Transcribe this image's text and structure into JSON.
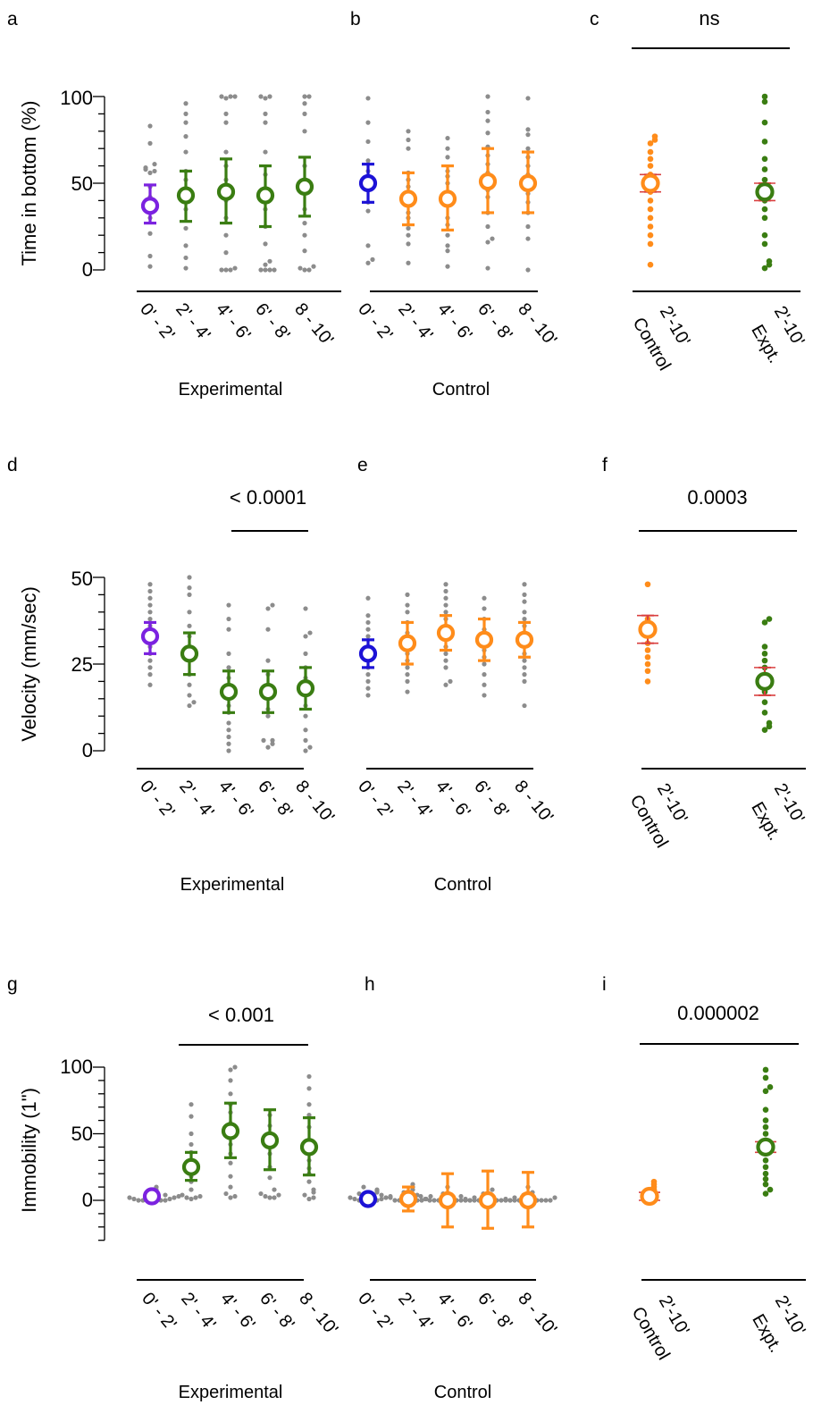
{
  "colors": {
    "purple": "#7b22e0",
    "green": "#3a7d12",
    "blue": "#1c12d6",
    "orange": "#ff8c1a",
    "grey": "#8c8c8c",
    "red": "#d94040"
  },
  "row_labels": {
    "a": {
      "y_label": "Time in bottom (%)",
      "y_ticks": [
        "100",
        "50",
        "0"
      ]
    },
    "d": {
      "y_label": "Velocity (mm/sec)",
      "y_ticks": [
        "50",
        "25",
        "0"
      ]
    },
    "g": {
      "y_label": "Immobility (1\")",
      "y_ticks": [
        "100",
        "50",
        "0"
      ]
    }
  },
  "chart_data": [
    {
      "panel": "a",
      "type": "scatter",
      "xlabel": "Experimental",
      "ylabel": "Time in bottom (%)",
      "ylim": [
        0,
        100
      ],
      "categories": [
        "0' - 2'",
        "2' - 4'",
        "4' - 6'",
        "6' - 8'",
        "8 - 10'"
      ],
      "means": [
        37,
        43,
        45,
        43,
        48
      ],
      "err_low": [
        27,
        28,
        27,
        25,
        31
      ],
      "err_high": [
        49,
        57,
        64,
        60,
        65
      ],
      "mean_colors": [
        "purple",
        "green",
        "green",
        "green",
        "green"
      ],
      "points": [
        [
          83,
          73,
          61,
          59,
          58,
          57,
          56,
          48,
          42,
          38,
          30,
          21,
          8,
          2
        ],
        [
          96,
          90,
          85,
          77,
          68,
          57,
          52,
          42,
          35,
          24,
          14,
          7,
          1
        ],
        [
          100,
          100,
          100,
          99,
          90,
          85,
          68,
          60,
          52,
          45,
          40,
          30,
          20,
          10,
          1,
          0,
          0,
          0
        ],
        [
          100,
          100,
          99,
          90,
          85,
          68,
          55,
          45,
          35,
          25,
          15,
          5,
          3,
          0,
          0,
          0,
          0
        ],
        [
          100,
          100,
          96,
          90,
          80,
          60,
          50,
          45,
          35,
          27,
          20,
          11,
          2,
          1,
          0,
          0
        ]
      ]
    },
    {
      "panel": "b",
      "type": "scatter",
      "xlabel": "Control",
      "ylim": [
        0,
        100
      ],
      "categories": [
        "0' - 2'",
        "2' - 4'",
        "4' - 6'",
        "6' - 8'",
        "8 - 10'"
      ],
      "means": [
        50,
        41,
        41,
        51,
        50
      ],
      "err_low": [
        39,
        26,
        23,
        33,
        33
      ],
      "err_high": [
        61,
        56,
        60,
        70,
        68
      ],
      "mean_colors": [
        "blue",
        "orange",
        "orange",
        "orange",
        "orange"
      ],
      "points": [
        [
          99,
          85,
          74,
          63,
          57,
          53,
          50,
          46,
          39,
          34,
          14,
          6,
          4
        ],
        [
          80,
          75,
          70,
          56,
          52,
          48,
          42,
          38,
          33,
          30,
          24,
          20,
          15,
          4
        ],
        [
          76,
          70,
          65,
          57,
          54,
          50,
          45,
          40,
          37,
          30,
          26,
          20,
          14,
          11,
          2
        ],
        [
          100,
          91,
          86,
          79,
          71,
          66,
          61,
          56,
          50,
          46,
          42,
          33,
          25,
          18,
          16,
          1
        ],
        [
          99,
          81,
          78,
          70,
          65,
          60,
          55,
          49,
          44,
          39,
          33,
          25,
          18,
          0
        ]
      ]
    },
    {
      "panel": "c",
      "type": "scatter",
      "title": "ns",
      "ylim": [
        0,
        100
      ],
      "categories": [
        "2'-10' Control",
        "2'-10' Expt."
      ],
      "means": [
        50,
        45
      ],
      "err_low": [
        45,
        40
      ],
      "err_high": [
        55,
        50
      ],
      "mean_colors": [
        "orange",
        "green"
      ],
      "point_colors": [
        "orange",
        "green"
      ],
      "points": [
        [
          77,
          75,
          73,
          68,
          64,
          60,
          55,
          50,
          45,
          40,
          35,
          30,
          25,
          20,
          15,
          3
        ],
        [
          100,
          97,
          85,
          74,
          64,
          58,
          52,
          48,
          45,
          40,
          35,
          30,
          20,
          15,
          5,
          3,
          1
        ]
      ]
    },
    {
      "panel": "d",
      "type": "scatter",
      "title": "< 0.0001",
      "xlabel": "Experimental",
      "ylabel": "Velocity (mm/sec)",
      "ylim": [
        0,
        50
      ],
      "categories": [
        "0' - 2'",
        "2' - 4'",
        "4' - 6'",
        "6' - 8'",
        "8 - 10'"
      ],
      "means": [
        33,
        28,
        17,
        17,
        18
      ],
      "err_low": [
        28,
        22,
        11,
        11,
        12
      ],
      "err_high": [
        37,
        34,
        23,
        23,
        24
      ],
      "mean_colors": [
        "purple",
        "green",
        "green",
        "green",
        "green"
      ],
      "points": [
        [
          48,
          46,
          44,
          42,
          40,
          38,
          36,
          34,
          30,
          28,
          26,
          24,
          22,
          19
        ],
        [
          50,
          47,
          45,
          40,
          36,
          33,
          30,
          28,
          22,
          19,
          16,
          14,
          13
        ],
        [
          42,
          38,
          35,
          28,
          24,
          21,
          18,
          15,
          13,
          11,
          8,
          6,
          4,
          2,
          0
        ],
        [
          42,
          41,
          35,
          26,
          22,
          19,
          15,
          12,
          10,
          3,
          3,
          2,
          1
        ],
        [
          41,
          34,
          33,
          28,
          24,
          21,
          17,
          13,
          10,
          6,
          3,
          1,
          0
        ]
      ]
    },
    {
      "panel": "e",
      "type": "scatter",
      "xlabel": "Control",
      "ylim": [
        0,
        50
      ],
      "categories": [
        "0' - 2'",
        "2' - 4'",
        "4' - 6'",
        "6' - 8'",
        "8 - 10'"
      ],
      "means": [
        28,
        31,
        34,
        32,
        32
      ],
      "err_low": [
        24,
        25,
        29,
        26,
        27
      ],
      "err_high": [
        32,
        37,
        39,
        38,
        37
      ],
      "mean_colors": [
        "blue",
        "orange",
        "orange",
        "orange",
        "orange"
      ],
      "points": [
        [
          44,
          39,
          37,
          35,
          33,
          30,
          28,
          26,
          24,
          22,
          20,
          18,
          16
        ],
        [
          45,
          42,
          40,
          37,
          34,
          31,
          28,
          26,
          24,
          22,
          20,
          17
        ],
        [
          48,
          46,
          44,
          42,
          40,
          38,
          36,
          33,
          30,
          28,
          26,
          24,
          20,
          19
        ],
        [
          44,
          41,
          38,
          35,
          33,
          31,
          29,
          27,
          25,
          22,
          19,
          16
        ],
        [
          48,
          45,
          43,
          40,
          38,
          36,
          34,
          31,
          28,
          26,
          24,
          22,
          20,
          13
        ]
      ]
    },
    {
      "panel": "f",
      "type": "scatter",
      "title": "0.0003",
      "ylim": [
        0,
        50
      ],
      "categories": [
        "2'-10' Control",
        "2'-10' Expt."
      ],
      "means": [
        35,
        20
      ],
      "err_low": [
        31,
        16
      ],
      "err_high": [
        39,
        24
      ],
      "mean_colors": [
        "orange",
        "green"
      ],
      "point_colors": [
        "orange",
        "green"
      ],
      "points": [
        [
          48,
          38,
          36,
          34,
          31,
          29,
          27,
          25,
          23,
          20
        ],
        [
          38,
          37,
          30,
          28,
          26,
          24,
          22,
          19,
          17,
          14,
          11,
          8,
          7,
          6
        ]
      ]
    },
    {
      "panel": "g",
      "type": "scatter",
      "title": "< 0.001",
      "xlabel": "Experimental",
      "ylabel": "Immobility (1\")",
      "ylim": [
        -25,
        100
      ],
      "categories": [
        "0' - 2'",
        "2' - 4'",
        "4' - 6'",
        "6' - 8'",
        "8 - 10'"
      ],
      "means": [
        3,
        25,
        52,
        45,
        40
      ],
      "err_low": [
        0,
        15,
        32,
        23,
        19
      ],
      "err_high": [
        6,
        36,
        73,
        68,
        62
      ],
      "mean_colors": [
        "purple",
        "green",
        "green",
        "green",
        "green"
      ],
      "points": [
        [
          10,
          8,
          6,
          4,
          3,
          2,
          2,
          1,
          1,
          0,
          0,
          0,
          0,
          0,
          0,
          0
        ],
        [
          72,
          63,
          50,
          42,
          36,
          30,
          22,
          18,
          14,
          8,
          4,
          3,
          2,
          2,
          1
        ],
        [
          100,
          98,
          90,
          80,
          72,
          66,
          58,
          50,
          42,
          35,
          28,
          18,
          10,
          5,
          3,
          2
        ],
        [
          64,
          56,
          50,
          45,
          40,
          35,
          25,
          17,
          8,
          5,
          4,
          3,
          2,
          2
        ],
        [
          93,
          84,
          72,
          64,
          55,
          45,
          36,
          30,
          24,
          20,
          14,
          8,
          6,
          4,
          2,
          1
        ]
      ]
    },
    {
      "panel": "h",
      "type": "scatter",
      "xlabel": "Control",
      "ylim": [
        -25,
        100
      ],
      "categories": [
        "0' - 2'",
        "2' - 4'",
        "4' - 6'",
        "6' - 8'",
        "8 - 10'"
      ],
      "means": [
        1,
        1,
        0,
        0,
        0
      ],
      "err_low": [
        -3,
        -8,
        -20,
        -21,
        -20
      ],
      "err_high": [
        5,
        10,
        20,
        22,
        21
      ],
      "mean_colors": [
        "blue",
        "orange",
        "orange",
        "orange",
        "orange"
      ],
      "points": [
        [
          10,
          8,
          7,
          6,
          5,
          4,
          3,
          2,
          2,
          1,
          1,
          0,
          0,
          0,
          0,
          0
        ],
        [
          12,
          10,
          8,
          6,
          4,
          3,
          2,
          1,
          0,
          0,
          0,
          0,
          0,
          0,
          0
        ],
        [
          10,
          5,
          3,
          2,
          1,
          0,
          0,
          0,
          0,
          0,
          0,
          0,
          0,
          0,
          0
        ],
        [
          8,
          5,
          3,
          2,
          1,
          0,
          0,
          0,
          0,
          0,
          0,
          0,
          0,
          0,
          0
        ],
        [
          10,
          6,
          4,
          2,
          1,
          0,
          0,
          0,
          0,
          0,
          0,
          0,
          0,
          0,
          0
        ]
      ]
    },
    {
      "panel": "i",
      "type": "scatter",
      "title": "0.000002",
      "ylim": [
        -25,
        100
      ],
      "categories": [
        "2'-10' Control",
        "2'-10' Expt."
      ],
      "means": [
        3,
        40
      ],
      "err_low": [
        0,
        36
      ],
      "err_high": [
        6,
        44
      ],
      "mean_colors": [
        "orange",
        "green"
      ],
      "point_colors": [
        "orange",
        "green"
      ],
      "points": [
        [
          14,
          12,
          10,
          8,
          6,
          4,
          2,
          1,
          0
        ],
        [
          98,
          92,
          85,
          82,
          68,
          60,
          55,
          50,
          45,
          40,
          35,
          30,
          25,
          20,
          16,
          12,
          8,
          5
        ]
      ]
    }
  ]
}
